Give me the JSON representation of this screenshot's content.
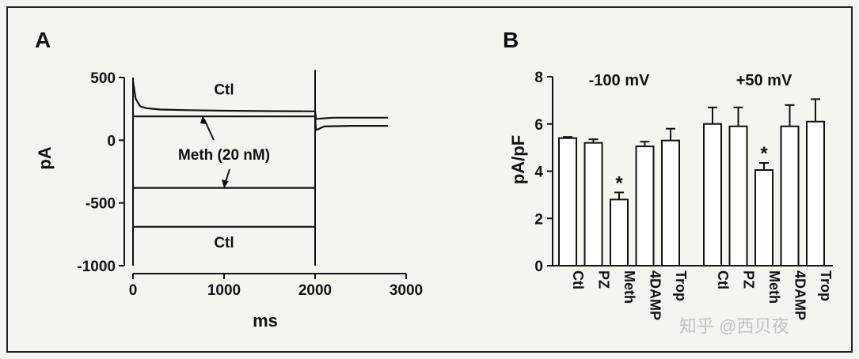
{
  "figure": {
    "watermark": "知乎 @西贝夜",
    "colors": {
      "background": "#f3f5ef",
      "ink": "#111111",
      "bar_fill": "#ffffff"
    }
  },
  "chart_data": [
    {
      "panel_label": "A",
      "type": "line",
      "xlabel": "ms",
      "ylabel": "pA",
      "xlim": [
        0,
        3000
      ],
      "ylim": [
        -1000,
        500
      ],
      "x_ticks": [
        0,
        1000,
        2000,
        3000
      ],
      "x_tick_labels": [
        "0",
        "1000",
        "2000",
        "3000"
      ],
      "y_ticks": [
        500,
        0,
        -500,
        -1000
      ],
      "y_tick_labels": [
        "500",
        "0",
        "-500",
        "-1000"
      ],
      "grid": false,
      "annotations": [
        {
          "text": "Ctl",
          "x": 1000,
          "y": 410
        },
        {
          "text": "Meth (20 nM)",
          "x": 1000,
          "y": -110
        },
        {
          "text": "Ctl",
          "x": 1000,
          "y": -810
        }
      ],
      "series": [
        {
          "x": [
            0,
            30,
            80,
            150,
            300,
            600,
            1000,
            1500,
            2000,
            2010,
            2200,
            2800
          ],
          "y": [
            470,
            330,
            270,
            255,
            245,
            240,
            235,
            232,
            230,
            170,
            180,
            180
          ]
        },
        {
          "x": [
            0,
            50,
            200,
            600,
            1000,
            1500,
            2000,
            2010,
            2100,
            2400,
            2800
          ],
          "y": [
            190,
            190,
            190,
            190,
            190,
            190,
            190,
            80,
            110,
            115,
            115
          ]
        },
        {
          "x": [
            0,
            500,
            1000,
            1500,
            2000
          ],
          "y": [
            -380,
            -380,
            -380,
            -380,
            -380
          ]
        },
        {
          "x": [
            0,
            500,
            1000,
            1500,
            2000
          ],
          "y": [
            -690,
            -690,
            -690,
            -690,
            -690
          ]
        }
      ]
    },
    {
      "panel_label": "B",
      "type": "bar",
      "ylabel": "pA/pF",
      "ylim": [
        0,
        8
      ],
      "y_ticks": [
        0,
        2,
        4,
        6,
        8
      ],
      "y_tick_labels": [
        "0",
        "2",
        "4",
        "6",
        "8"
      ],
      "grid": false,
      "groups": [
        {
          "label": "-100 mV",
          "categories": [
            "Ctl",
            "PZ",
            "Meth",
            "4DAMP",
            "Trop"
          ],
          "values": [
            5.4,
            5.2,
            2.8,
            5.05,
            5.3
          ],
          "errors": [
            0.05,
            0.15,
            0.3,
            0.2,
            0.5
          ],
          "significance": [
            "",
            "",
            "*",
            "",
            ""
          ]
        },
        {
          "label": "+50 mV",
          "categories": [
            "Ctl",
            "PZ",
            "Meth",
            "4DAMP",
            "Trop"
          ],
          "values": [
            6.0,
            5.9,
            4.05,
            5.9,
            6.1
          ],
          "errors": [
            0.7,
            0.8,
            0.3,
            0.9,
            0.95
          ],
          "significance": [
            "",
            "",
            "*",
            "",
            ""
          ]
        }
      ]
    }
  ]
}
